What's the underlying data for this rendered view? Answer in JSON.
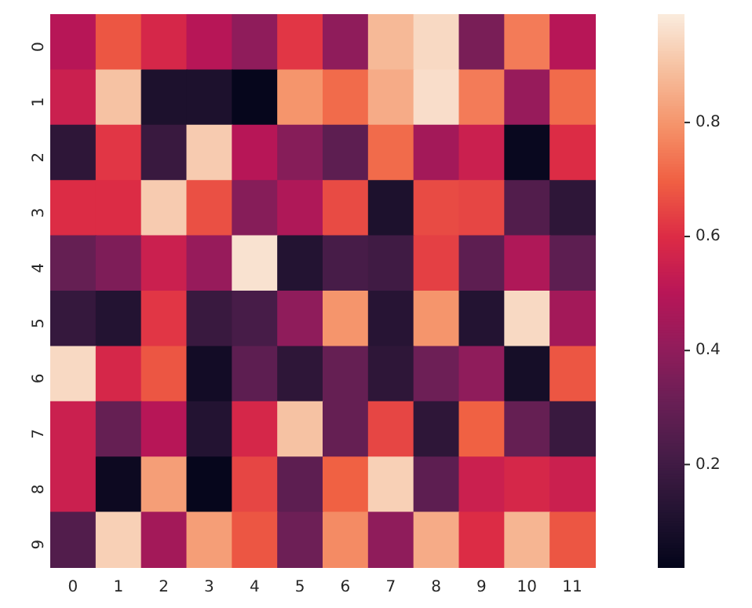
{
  "chart_data": {
    "type": "heatmap",
    "categories": [
      "0",
      "1",
      "2",
      "3",
      "4",
      "5",
      "6",
      "7",
      "8",
      "9",
      "10",
      "11"
    ],
    "y_categories": [
      "0",
      "1",
      "2",
      "3",
      "4",
      "5",
      "6",
      "7",
      "8",
      "9"
    ],
    "cells": [
      [
        0.5,
        0.68,
        0.58,
        0.5,
        0.4,
        0.62,
        0.4,
        0.88,
        0.95,
        0.35,
        0.75,
        0.5
      ],
      [
        0.55,
        0.9,
        0.1,
        0.1,
        0.03,
        0.8,
        0.72,
        0.85,
        0.96,
        0.75,
        0.42,
        0.72
      ],
      [
        0.15,
        0.62,
        0.18,
        0.92,
        0.5,
        0.38,
        0.28,
        0.72,
        0.45,
        0.55,
        0.04,
        0.6
      ],
      [
        0.6,
        0.6,
        0.92,
        0.67,
        0.38,
        0.48,
        0.66,
        0.1,
        0.66,
        0.65,
        0.25,
        0.15
      ],
      [
        0.3,
        0.36,
        0.55,
        0.42,
        0.97,
        0.12,
        0.22,
        0.2,
        0.64,
        0.28,
        0.48,
        0.28
      ],
      [
        0.17,
        0.12,
        0.62,
        0.18,
        0.22,
        0.4,
        0.8,
        0.13,
        0.8,
        0.12,
        0.95,
        0.45
      ],
      [
        0.95,
        0.58,
        0.68,
        0.07,
        0.28,
        0.15,
        0.3,
        0.15,
        0.32,
        0.4,
        0.08,
        0.68
      ],
      [
        0.55,
        0.3,
        0.5,
        0.12,
        0.58,
        0.9,
        0.3,
        0.65,
        0.15,
        0.7,
        0.3,
        0.18
      ],
      [
        0.55,
        0.05,
        0.82,
        0.03,
        0.65,
        0.28,
        0.7,
        0.93,
        0.28,
        0.55,
        0.58,
        0.55
      ],
      [
        0.25,
        0.93,
        0.45,
        0.82,
        0.68,
        0.32,
        0.78,
        0.4,
        0.85,
        0.6,
        0.87,
        0.68
      ]
    ],
    "clim": [
      0.02,
      0.99
    ],
    "cticks": [
      0.2,
      0.4,
      0.6,
      0.8
    ]
  }
}
